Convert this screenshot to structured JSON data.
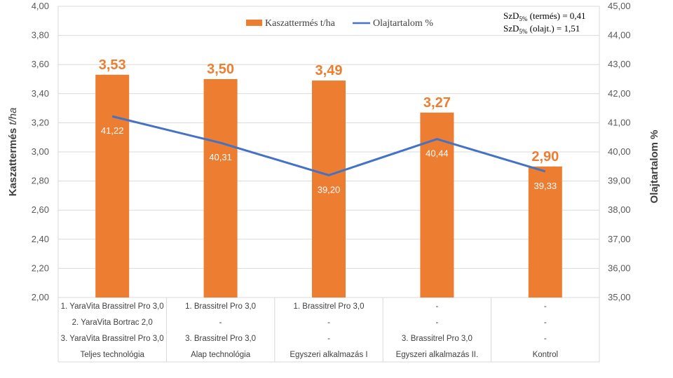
{
  "chart_data": {
    "type": "bar+line",
    "categories": [
      "Teljes technológia",
      "Alap technológia",
      "Egyszeri alkalmazás I",
      "Egyszeri alkalmazás II.",
      "Kontrol"
    ],
    "treatment_rows": [
      [
        "1. YaraVita Brassitrel Pro 3,0",
        "1. Brassitrel Pro 3,0",
        "1. Brassitrel Pro 3,0",
        "-",
        "-"
      ],
      [
        "2. YaraVita Bortrac 2,0",
        "-",
        "-",
        "-",
        "-"
      ],
      [
        "3. YaraVita Brassitrel Pro 3,0",
        "3. Brassitrel Pro 3,0",
        "-",
        "3. Brassitrel Pro 3,0",
        "-"
      ]
    ],
    "series": [
      {
        "name": "Kaszattermés t/ha",
        "type": "bar",
        "axis": "left",
        "color": "#ED7D31",
        "values": [
          3.53,
          3.5,
          3.49,
          3.27,
          2.9
        ],
        "labels": [
          "3,53",
          "3,50",
          "3,49",
          "3,27",
          "2,90"
        ]
      },
      {
        "name": "Olajtartalom %",
        "type": "line",
        "axis": "right",
        "color": "#4472C4",
        "values": [
          41.22,
          40.31,
          39.2,
          40.44,
          39.33
        ],
        "labels": [
          "41,22",
          "40,31",
          "39,20",
          "40,44",
          "39,33"
        ]
      }
    ],
    "y_left": {
      "label_main": "Kaszattermés ",
      "label_unit": "t/ha",
      "range": [
        2.0,
        4.0
      ],
      "ticks": [
        "2,00",
        "2,20",
        "2,40",
        "2,60",
        "2,80",
        "3,00",
        "3,20",
        "3,40",
        "3,60",
        "3,80",
        "4,00"
      ]
    },
    "y_right": {
      "label": "Olajtartalom  %",
      "range": [
        35.0,
        45.0
      ],
      "ticks": [
        "35,00",
        "36,00",
        "37,00",
        "38,00",
        "39,00",
        "40,00",
        "41,00",
        "42,00",
        "43,00",
        "44,00",
        "45,00"
      ]
    },
    "legend": {
      "position": "top",
      "items": [
        "Kaszattermés t/ha",
        "Olajtartalom %"
      ]
    },
    "annotation": {
      "line1_prefix": "SzD",
      "line1_sub": "5%",
      "line1_suffix": " (termés) = 0,41",
      "line2_prefix": "SzD",
      "line2_sub": "5%",
      "line2_suffix": " (olajt.) = 1,51"
    }
  }
}
